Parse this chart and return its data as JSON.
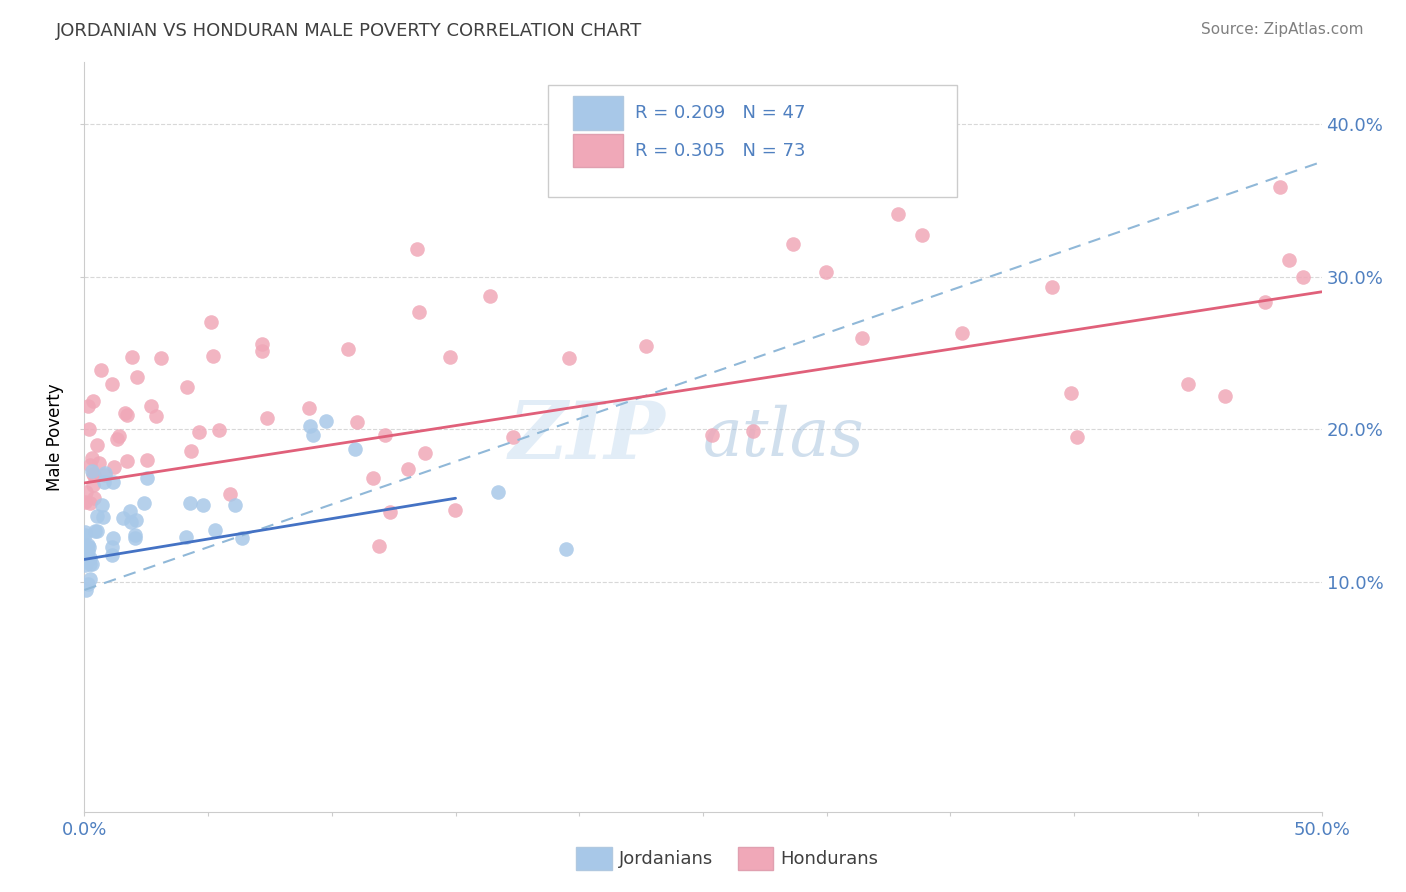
{
  "title": "JORDANIAN VS HONDURAN MALE POVERTY CORRELATION CHART",
  "source_text": "Source: ZipAtlas.com",
  "ylabel": "Male Poverty",
  "legend_label1": "Jordanians",
  "legend_label2": "Hondurans",
  "R1": 0.209,
  "N1": 47,
  "R2": 0.305,
  "N2": 73,
  "color_jordan": "#a8c8e8",
  "color_honduran": "#f0a8b8",
  "color_jordan_line": "#4472c4",
  "color_honduran_line": "#e0607a",
  "color_dashed": "#90b8d8",
  "title_color": "#404040",
  "source_color": "#808080",
  "tick_color": "#5080c0",
  "xmin": 0.0,
  "xmax": 0.5,
  "ymin": -0.05,
  "ymax": 0.44,
  "yticks": [
    0.1,
    0.2,
    0.3,
    0.4
  ],
  "ytick_labels": [
    "10.0%",
    "20.0%",
    "30.0%",
    "40.0%"
  ],
  "watermark_zip": "ZIP",
  "watermark_atlas": "atlas",
  "jordan_trend_x": [
    0.0,
    0.15
  ],
  "jordan_trend_y": [
    0.115,
    0.155
  ],
  "honduran_trend_x": [
    0.0,
    0.5
  ],
  "honduran_trend_y": [
    0.165,
    0.29
  ],
  "dashed_trend_x": [
    0.0,
    0.5
  ],
  "dashed_trend_y": [
    0.095,
    0.375
  ]
}
